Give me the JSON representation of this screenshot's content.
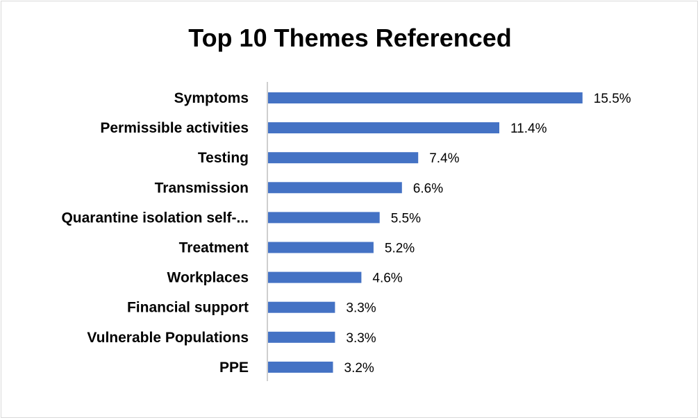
{
  "chart_data": {
    "type": "bar",
    "orientation": "horizontal",
    "title": "Top 10 Themes Referenced",
    "categories": [
      "Symptoms",
      "Permissible activities",
      "Testing",
      "Transmission",
      "Quarantine isolation self-...",
      "Treatment",
      "Workplaces",
      "Financial support",
      "Vulnerable Populations",
      "PPE"
    ],
    "values": [
      15.5,
      11.4,
      7.4,
      6.6,
      5.5,
      5.2,
      4.6,
      3.3,
      3.3,
      3.2
    ],
    "data_labels": [
      "15.5%",
      "11.4%",
      "7.4%",
      "6.6%",
      "5.5%",
      "5.2%",
      "4.6%",
      "3.3%",
      "3.3%",
      "3.2%"
    ],
    "value_unit": "%",
    "xlim": [
      0,
      16.5
    ],
    "xlabel": "",
    "ylabel": "",
    "grid": false,
    "legend": "none",
    "bar_color": "#4472c4",
    "axis_color": "#bfbfbf"
  }
}
